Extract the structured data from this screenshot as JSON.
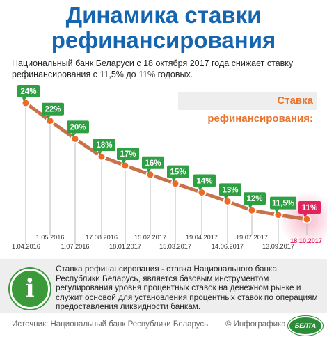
{
  "header": {
    "title_line1": "Динамика ставки",
    "title_line2": "рефинансирования",
    "subtitle": "Национальный банк Беларуси с 18 октября 2017 года снижает ставку рефинансирования с 11,5% до 11% годовых."
  },
  "rate_label": "Ставка рефинансирования:",
  "colors": {
    "title": "#1565b0",
    "badge": "#2ea043",
    "badge_last": "#e0245e",
    "line": "#c9714a",
    "dot": "#ee6a24",
    "date_last": "#e0245e"
  },
  "chart_data": {
    "type": "line",
    "x": [
      "1.04.2016",
      "1.05.2016",
      "1.07.2016",
      "17.08.2016",
      "18.01.2017",
      "15.02.2017",
      "15.03.2017",
      "19.04.2017",
      "14.06.2017",
      "19.07.2017",
      "13.09.2017",
      "18.10.2017"
    ],
    "y": [
      24,
      22,
      20,
      18,
      17,
      16,
      15,
      14,
      13,
      12,
      11.5,
      11
    ],
    "labels": [
      "24%",
      "22%",
      "20%",
      "18%",
      "17%",
      "16%",
      "15%",
      "14%",
      "13%",
      "12%",
      "11,5%",
      "11%"
    ],
    "ylabel": "Ставка рефинансирования:",
    "highlight_last": true
  },
  "info": {
    "icon": "info-icon",
    "text": "Ставка рефинансирования - ставка Национального банка Республики Беларусь, является базовым инструментом регулирования уровня процентных ставок на денежном рынке и служит основой для установления процентных ставок по операциям предоставления ликвидности банкам."
  },
  "footer": {
    "source": "Источник: Национальный банк Республики Беларусь.",
    "credit": "© Инфографика",
    "logo_text": "БЕЛТА"
  }
}
